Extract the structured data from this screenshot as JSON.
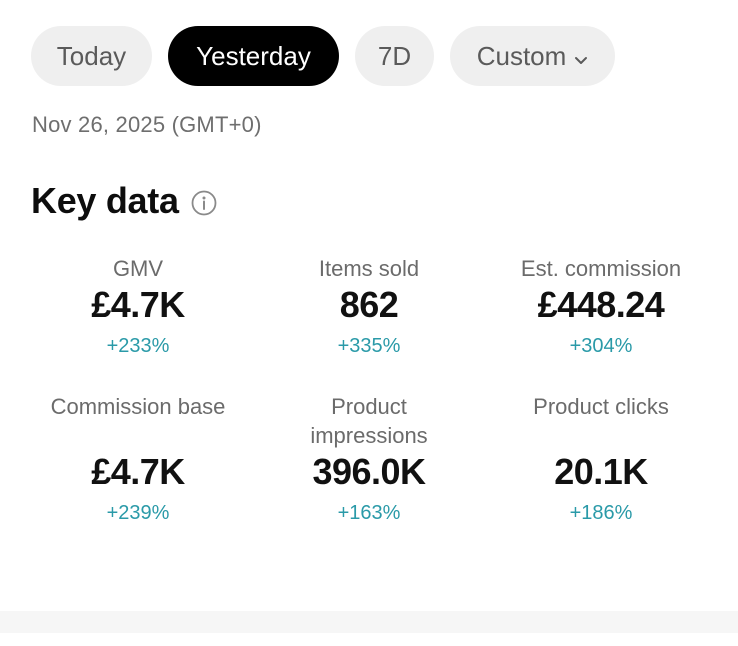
{
  "tabs": [
    {
      "label": "Today",
      "active": false
    },
    {
      "label": "Yesterday",
      "active": true
    },
    {
      "label": "7D",
      "active": false
    },
    {
      "label": "Custom",
      "active": false,
      "icon": "chevron-down-icon"
    }
  ],
  "date_label": "Nov 26, 2025 (GMT+0)",
  "section": {
    "title": "Key data",
    "info_icon": "info-icon"
  },
  "metrics": [
    {
      "label": "GMV",
      "value": "£4.7K",
      "change": "+233%"
    },
    {
      "label": "Items sold",
      "value": "862",
      "change": "+335%"
    },
    {
      "label": "Est. commission",
      "value": "£448.24",
      "change": "+304%"
    },
    {
      "label": "Commission base",
      "value": "£4.7K",
      "change": "+239%"
    },
    {
      "label": "Product impressions",
      "label_line1": "Product",
      "label_line2": "impressions",
      "value": "396.0K",
      "change": "+163%"
    },
    {
      "label": "Product clicks",
      "value": "20.1K",
      "change": "+186%"
    }
  ],
  "colors": {
    "active_tab_bg": "#000000",
    "inactive_tab_bg": "#efefef",
    "positive_change": "#2a9aa8",
    "label_gray": "#6b6b6b"
  }
}
